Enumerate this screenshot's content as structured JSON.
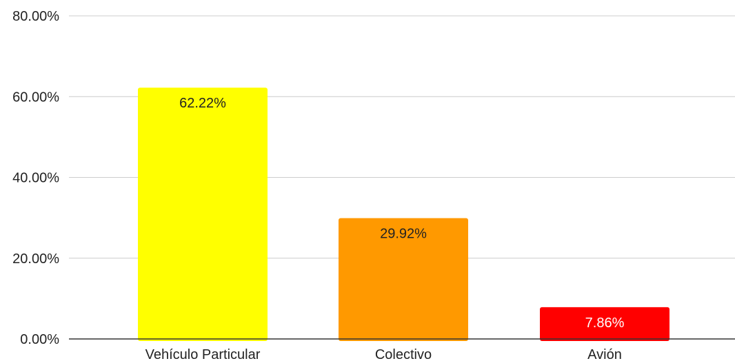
{
  "chart_data": {
    "type": "bar",
    "title": "",
    "xlabel": "",
    "ylabel": "",
    "categories": [
      "Vehículo Particular",
      "Colectivo",
      "Avión"
    ],
    "values": [
      62.22,
      29.92,
      7.86
    ],
    "value_labels": [
      "62.22%",
      "29.92%",
      "7.86%"
    ],
    "bar_colors": [
      "#ffff00",
      "#ff9900",
      "#ff0000"
    ],
    "label_colors": [
      "#222222",
      "#222222",
      "#ffffff"
    ],
    "ylim": [
      0,
      80
    ],
    "yticks": [
      0,
      20,
      40,
      60,
      80
    ],
    "ytick_labels": [
      "0.00%",
      "20.00%",
      "40.00%",
      "60.00%",
      "80.00%"
    ],
    "grid": true,
    "legend": "none"
  }
}
